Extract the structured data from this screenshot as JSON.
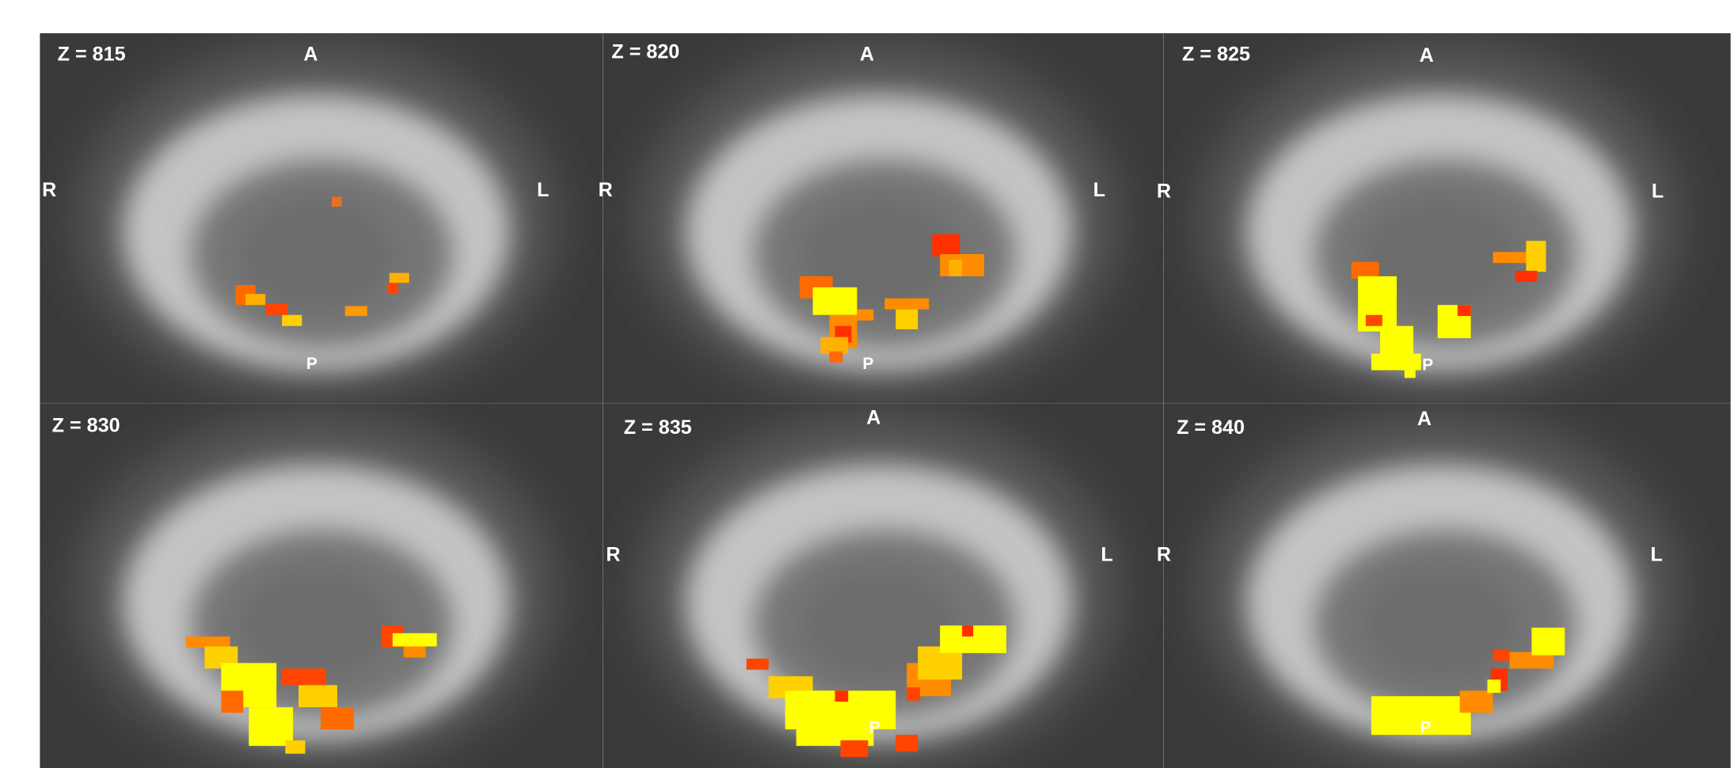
{
  "panels": [
    {
      "z_label": "Z = 815",
      "labels": {
        "A": "A",
        "R": "R",
        "L": "L",
        "P": "P"
      }
    },
    {
      "z_label": "Z = 820",
      "labels": {
        "A": "A",
        "R": "R",
        "L": "L",
        "P": "P"
      }
    },
    {
      "z_label": "Z = 825",
      "labels": {
        "A": "A",
        "R": "R",
        "L": "L",
        "P": "P"
      }
    },
    {
      "z_label": "Z = 830"
    },
    {
      "z_label": "Z = 835",
      "labels": {
        "A": "A",
        "R": "R",
        "L": "L",
        "P": "P"
      }
    },
    {
      "z_label": "Z = 840",
      "labels": {
        "A": "A",
        "R": "R",
        "L": "L",
        "P": "P"
      }
    }
  ]
}
